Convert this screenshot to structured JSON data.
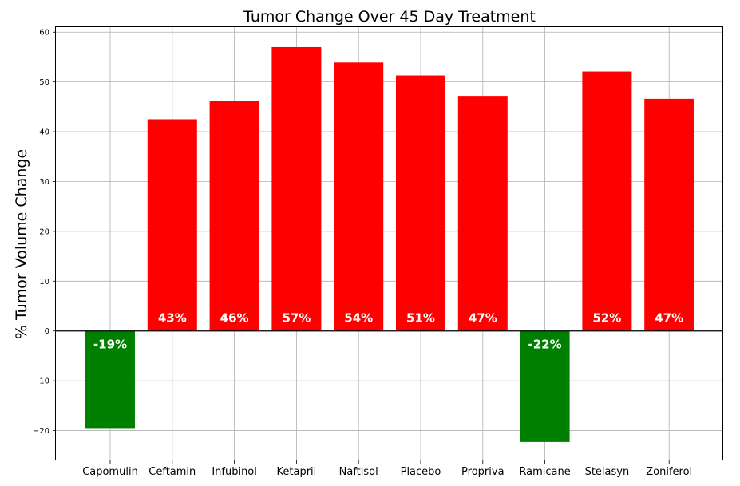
{
  "chart_data": {
    "type": "bar",
    "title": "Tumor Change Over 45 Day Treatment",
    "xlabel": "",
    "ylabel": "% Tumor Volume Change",
    "categories": [
      "Capomulin",
      "Ceftamin",
      "Infubinol",
      "Ketapril",
      "Naftisol",
      "Placebo",
      "Propriva",
      "Ramicane",
      "Stelasyn",
      "Zoniferol"
    ],
    "values": [
      -19.5,
      42.5,
      46.1,
      57.0,
      53.9,
      51.3,
      47.2,
      -22.3,
      52.1,
      46.6
    ],
    "value_labels": [
      "-19%",
      "43%",
      "46%",
      "57%",
      "54%",
      "51%",
      "47%",
      "-22%",
      "52%",
      "47%"
    ],
    "ylim": [
      -26,
      61
    ],
    "yticks": [
      60,
      50,
      40,
      30,
      20,
      10,
      0,
      -10,
      -20
    ],
    "ytick_labels": [
      "60",
      "50",
      "40",
      "30",
      "20",
      "10",
      "0",
      "−10",
      "−20"
    ],
    "grid": true,
    "zero_line": true,
    "colors": {
      "positive": "#ff0000",
      "negative": "#008000",
      "zero_line": "#000000",
      "grid": "#b0b0b0"
    }
  }
}
